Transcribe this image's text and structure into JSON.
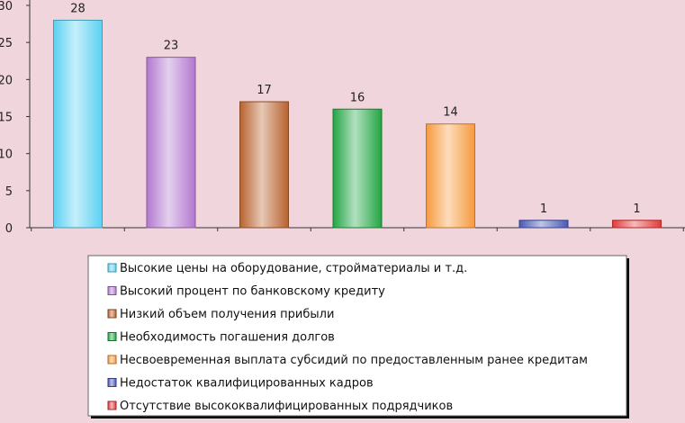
{
  "chart_data": {
    "type": "bar",
    "title": "",
    "xlabel": "",
    "ylabel": "",
    "ylim": [
      0,
      30
    ],
    "yticks": [
      0,
      5,
      10,
      15,
      20,
      25,
      30
    ],
    "grid": false,
    "legend_position": "bottom",
    "categories": [
      "Высокие цены на оборудование, стройматериалы и т.д.",
      "Высокий процент по банковскому кредиту",
      "Низкий объем получения прибыли",
      "Необходимость погашения долгов",
      "Несвоевременная выплата субсидий по предоставленным ранее кредитам",
      "Недостаток квалифицированных кадров",
      "Отсутствие высококвалифицированных подрядчиков"
    ],
    "values": [
      28,
      23,
      17,
      16,
      14,
      1,
      1
    ],
    "colors": [
      "#5bd1f2",
      "#b278cf",
      "#b8622e",
      "#22a544",
      "#f79a3e",
      "#4958b5",
      "#e23a3a"
    ]
  }
}
